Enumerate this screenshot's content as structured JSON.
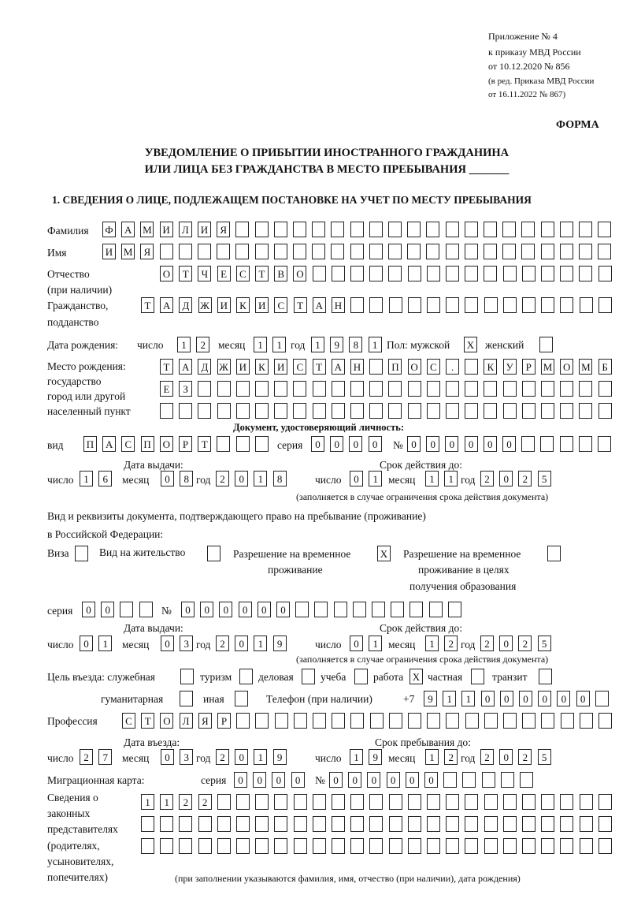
{
  "header": {
    "appendix": "Приложение № 4",
    "order": "к приказу МВД России",
    "order_date": "от 10.12.2020 № 856",
    "revision1": "(в ред. Приказа МВД России",
    "revision2": "от 16.11.2022 № 867)",
    "form_label": "ФОРМА",
    "title1": "УВЕДОМЛЕНИЕ О ПРИБЫТИИ ИНОСТРАННОГО ГРАЖДАНИНА",
    "title2": "ИЛИ ЛИЦА БЕЗ ГРАЖДАНСТВА В МЕСТО ПРЕБЫВАНИЯ _______",
    "section1": "1. СВЕДЕНИЯ О ЛИЦЕ, ПОДЛЕЖАЩЕМ ПОСТАНОВКЕ НА УЧЕТ ПО МЕСТУ ПРЕБЫВАНИЯ"
  },
  "labels": {
    "surname": "Фамилия",
    "name": "Имя",
    "patronymic1": "Отчество",
    "patronymic2": "(при наличии)",
    "citizenship1": "Гражданство,",
    "citizenship2": "подданство",
    "birth_date": "Дата рождения:",
    "day": "число",
    "month": "месяц",
    "year": "год",
    "sex_male": "Пол: мужской",
    "sex_female": "женский",
    "birthplace1": "Место рождения:",
    "birthplace2": "государство",
    "birthplace3": "город или другой",
    "birthplace4": "населенный пункт",
    "id_doc": "Документ, удостоверяющий личность:",
    "kind": "вид",
    "series": "серия",
    "number": "№",
    "issue_date": "Дата выдачи:",
    "valid_until": "Срок действия до:",
    "validity_note": "(заполняется в случае ограничения срока действия документа)",
    "stay_doc1": "Вид и реквизиты документа, подтверждающего право на пребывание (проживание)",
    "stay_doc2": "в Российской Федерации:",
    "visa": "Виза",
    "residence": "Вид на жительство",
    "temp_res1": "Разрешение на временное",
    "temp_res2": "проживание",
    "temp_edu1": "Разрешение на временное",
    "temp_edu2": "проживание в целях",
    "temp_edu3": "получения образования",
    "purpose": "Цель въезда: служебная",
    "tourism": "туризм",
    "business": "деловая",
    "study": "учеба",
    "work": "работа",
    "private": "частная",
    "transit": "транзит",
    "humanitarian": "гуманитарная",
    "other": "иная",
    "phone": "Телефон (при наличии)",
    "phone_prefix": "+7",
    "profession": "Профессия",
    "entry_date": "Дата въезда:",
    "stay_until": "Срок пребывания до:",
    "migration_card": "Миграционная карта:",
    "reps1": "Сведения о",
    "reps2": "законных",
    "reps3": "представителях",
    "reps4": "(родителях,",
    "reps5": "усыновителях,",
    "reps6": "попечителях)",
    "reps_note": "(при заполнении указываются фамилия, имя, отчество (при наличии), дата рождения)"
  },
  "fields": {
    "surname": "ФАМИЛИЯ",
    "name": "ИМЯ",
    "patronymic": "ОТЧЕСТВО",
    "citizenship": "ТАДЖИКИСТАН",
    "birth_day": "12",
    "birth_month": "11",
    "birth_year": "1981",
    "sex_male": "X",
    "sex_female": "",
    "birthplace_1": "ТАДЖИКИСТАН ПОС. КУРМОМБ",
    "birthplace_2": "ЕЗ",
    "birthplace_3": "",
    "doc_kind": "ПАСПОРТ",
    "doc_series": "0000",
    "doc_number": "000000",
    "doc_issue_day": "16",
    "doc_issue_month": "08",
    "doc_issue_year": "2018",
    "doc_valid_day": "01",
    "doc_valid_month": "11",
    "doc_valid_year": "2025",
    "visa": "",
    "residence": "",
    "temp_res": "X",
    "temp_edu": "",
    "stay_series": "00",
    "stay_number": "000000",
    "stay_issue_day": "01",
    "stay_issue_month": "03",
    "stay_issue_year": "2019",
    "stay_valid_day": "01",
    "stay_valid_month": "12",
    "stay_valid_year": "2025",
    "p_service": "",
    "p_tourism": "",
    "p_business": "",
    "p_study": "",
    "p_work": "X",
    "p_private": "",
    "p_transit": "",
    "p_humanitarian": "",
    "p_other": "",
    "phone": "911000000",
    "profession": "СТОЛЯР",
    "entry_day": "27",
    "entry_month": "03",
    "entry_year": "2019",
    "until_day": "19",
    "until_month": "12",
    "until_year": "2025",
    "mc_series": "0000",
    "mc_number": "000000",
    "reps_1": "1122",
    "reps_2": "",
    "reps_3": ""
  }
}
